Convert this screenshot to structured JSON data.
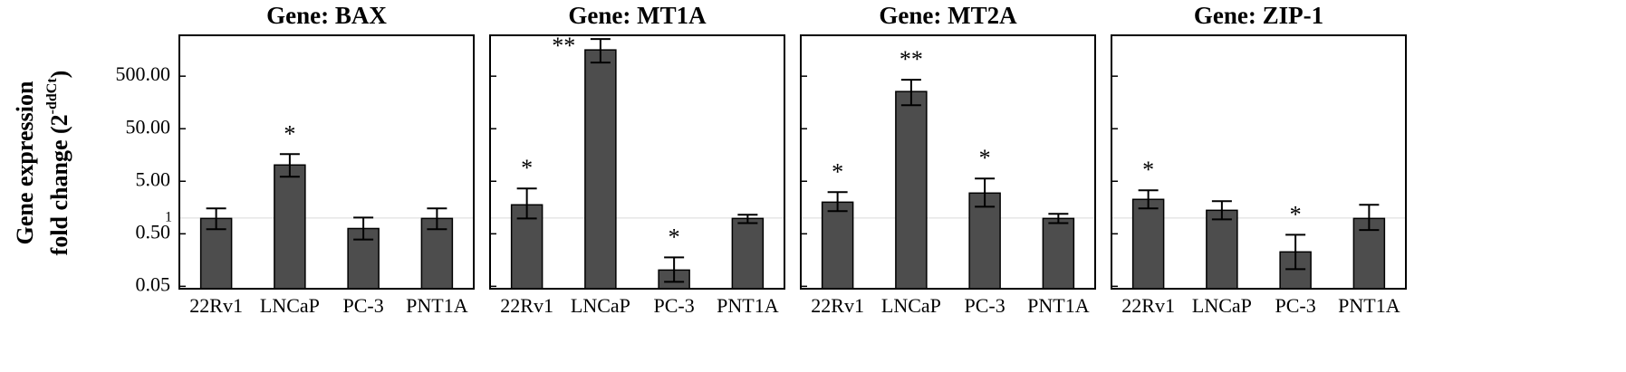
{
  "chart_data": [
    {
      "type": "bar",
      "title": "Gene: BAX",
      "ylabel": "Gene expression",
      "ylabel2": "fold change (2",
      "ylabel2_sup": "-ddCt",
      "ylabel2_end": ")",
      "categories": [
        "22Rv1",
        "LNCaP",
        "PC-3",
        "PNT1A"
      ],
      "values": [
        0.98,
        10.2,
        0.63,
        0.98
      ],
      "error_low": [
        0.61,
        6.1,
        0.39,
        0.61
      ],
      "error_high": [
        1.52,
        16.4,
        1.02,
        1.52
      ],
      "annotations": [
        null,
        "*",
        null,
        null
      ],
      "color": "#4d4d4d",
      "log_y": true,
      "hline": 1,
      "ylim": [
        0.045,
        3000
      ],
      "yticks": [
        {
          "value": 0.05,
          "label": "0.05"
        },
        {
          "value": 0.5,
          "label": "0.50"
        },
        1,
        {
          "value": 5,
          "label": "5.00"
        },
        {
          "value": 50,
          "label": "50.00"
        },
        {
          "value": 500,
          "label": "500.00"
        }
      ]
    },
    {
      "type": "bar",
      "title": "Gene: MT1A",
      "categories": [
        "22Rv1",
        "LNCaP",
        "PC-3",
        "PNT1A"
      ],
      "values": [
        1.78,
        1581,
        0.102,
        0.98
      ],
      "error_low": [
        0.98,
        907,
        0.061,
        0.8
      ],
      "error_high": [
        3.64,
        2546,
        0.178,
        1.15
      ],
      "annotations": [
        "*",
        "**",
        "*",
        null
      ],
      "color": "#4d4d4d",
      "log_y": true,
      "hline": 1,
      "ylim": [
        0.045,
        3000
      ],
      "yticks": [
        0.05,
        0.5,
        5,
        50,
        500
      ]
    },
    {
      "type": "bar",
      "title": "Gene: MT2A",
      "categories": [
        "22Rv1",
        "LNCaP",
        "PC-3",
        "PNT1A"
      ],
      "values": [
        2.0,
        255,
        2.98,
        0.98
      ],
      "error_low": [
        1.35,
        140,
        1.64,
        0.8
      ],
      "error_high": [
        3.1,
        427,
        5.64,
        1.2
      ],
      "annotations": [
        "*",
        "**",
        "*",
        null
      ],
      "color": "#4d4d4d",
      "log_y": true,
      "hline": 1,
      "ylim": [
        0.045,
        3000
      ],
      "yticks": [
        0.05,
        0.5,
        5,
        50,
        500
      ]
    },
    {
      "type": "bar",
      "title": "Gene: ZIP-1",
      "categories": [
        "22Rv1",
        "LNCaP",
        "PC-3",
        "PNT1A"
      ],
      "values": [
        2.26,
        1.4,
        0.226,
        0.98
      ],
      "error_low": [
        1.52,
        0.94,
        0.106,
        0.59
      ],
      "error_high": [
        3.36,
        2.09,
        0.48,
        1.78
      ],
      "annotations": [
        "*",
        null,
        "*",
        null
      ],
      "color": "#4d4d4d",
      "log_y": true,
      "hline": 1,
      "ylim": [
        0.045,
        3000
      ],
      "yticks": [
        0.05,
        0.5,
        5,
        50,
        500
      ]
    }
  ]
}
